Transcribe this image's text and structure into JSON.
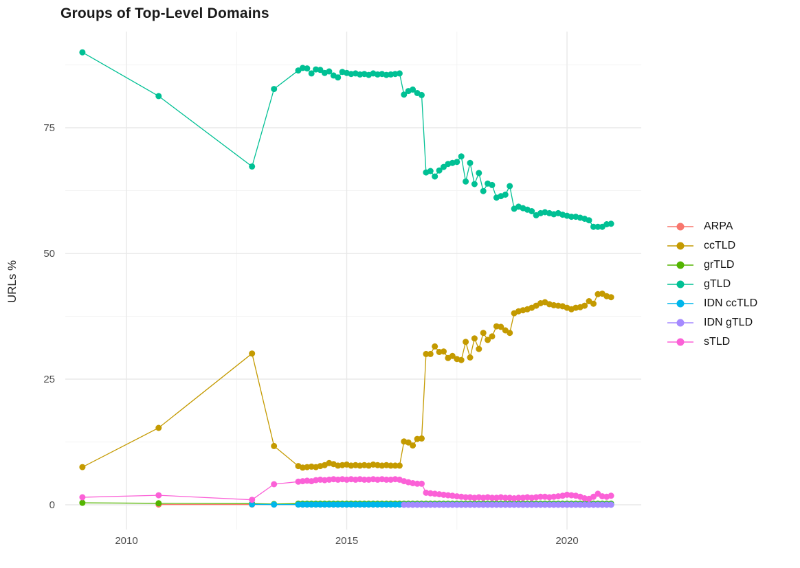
{
  "title": "Groups of Top-Level Domains",
  "ylabel": "URLs %",
  "chart_data": {
    "type": "line",
    "title": "Groups of Top-Level Domains",
    "xlabel": "",
    "ylabel": "URLs %",
    "legend_position": "right",
    "grid": "major+minor",
    "xticks": [
      "2010",
      "2015",
      "2020"
    ],
    "xtick_years": [
      2010,
      2015,
      2020
    ],
    "minor_xticks": [
      2012.5,
      2017.5
    ],
    "yticks": [
      "0",
      "25",
      "50",
      "75"
    ],
    "ytick_values": [
      0,
      25,
      50,
      75
    ],
    "minor_yticks": [
      12.5,
      37.5,
      62.5,
      87.5
    ],
    "xlim": [
      2008.6,
      2021.7
    ],
    "ylim": [
      -4.5,
      94.3
    ],
    "series": [
      {
        "name": "ARPA",
        "color": "#F8766D",
        "sparse": [
          [
            2010.73,
            0.05
          ],
          [
            2012.85,
            0.05
          ],
          [
            2013.35,
            0.05
          ]
        ],
        "dense_x0": 2013.9,
        "dense_dx": 0.1,
        "const_value": 0.05,
        "count": 72
      },
      {
        "name": "ccTLD",
        "color": "#C49A00",
        "sparse": [
          [
            2009.0,
            7.5
          ],
          [
            2010.73,
            15.3
          ],
          [
            2012.85,
            30.1
          ],
          [
            2013.35,
            11.7
          ]
        ],
        "dense_x0": 2013.9,
        "dense_dx": 0.1,
        "dense": [
          7.7,
          7.4,
          7.5,
          7.6,
          7.5,
          7.7,
          7.9,
          8.3,
          8.1,
          7.8,
          7.9,
          8.0,
          7.8,
          7.9,
          7.8,
          7.9,
          7.8,
          8.0,
          7.9,
          7.8,
          7.9,
          7.8,
          7.8,
          7.8,
          12.6,
          12.4,
          11.8,
          13.1,
          13.2,
          30.0,
          30.0,
          31.5,
          30.4,
          30.5,
          29.2,
          29.6,
          29.0,
          28.8,
          32.4,
          29.3,
          33.1,
          31.0,
          34.2,
          32.8,
          33.5,
          35.5,
          35.4,
          34.7,
          34.2,
          38.1,
          38.5,
          38.7,
          38.9,
          39.2,
          39.6,
          40.1,
          40.3,
          39.9,
          39.7,
          39.6,
          39.5,
          39.2,
          38.9,
          39.2,
          39.3,
          39.6,
          40.5,
          40.0,
          41.9,
          42.0,
          41.5,
          41.3
        ]
      },
      {
        "name": "grTLD",
        "color": "#53B400",
        "sparse": [
          [
            2009.0,
            0.4
          ],
          [
            2010.73,
            0.3
          ],
          [
            2012.85,
            0.25
          ],
          [
            2013.35,
            0.15
          ]
        ],
        "dense_x0": 2013.9,
        "dense_dx": 0.1,
        "const_value": 0.25,
        "count": 72
      },
      {
        "name": "gTLD",
        "color": "#00C094",
        "sparse": [
          [
            2009.0,
            90.0
          ],
          [
            2010.73,
            81.3
          ],
          [
            2012.85,
            67.3
          ],
          [
            2013.35,
            82.7
          ]
        ],
        "dense_x0": 2013.9,
        "dense_dx": 0.1,
        "dense": [
          86.4,
          86.9,
          86.8,
          85.8,
          86.6,
          86.5,
          85.9,
          86.2,
          85.4,
          85.0,
          86.1,
          85.9,
          85.7,
          85.8,
          85.6,
          85.7,
          85.5,
          85.8,
          85.6,
          85.7,
          85.5,
          85.6,
          85.7,
          85.8,
          81.6,
          82.3,
          82.6,
          81.9,
          81.5,
          66.1,
          66.4,
          65.3,
          66.5,
          67.2,
          67.8,
          68.0,
          68.2,
          69.3,
          64.3,
          68.0,
          63.8,
          66.0,
          62.4,
          63.9,
          63.6,
          61.1,
          61.4,
          61.7,
          63.4,
          58.9,
          59.3,
          59.0,
          58.7,
          58.4,
          57.6,
          58.0,
          58.2,
          58.0,
          57.8,
          58.0,
          57.7,
          57.5,
          57.3,
          57.3,
          57.1,
          56.9,
          56.6,
          55.3,
          55.3,
          55.3,
          55.8,
          55.9
        ]
      },
      {
        "name": "IDN ccTLD",
        "color": "#00B6EB",
        "sparse": [
          [
            2012.85,
            0.1
          ],
          [
            2013.35,
            0.05
          ]
        ],
        "dense_x0": 2013.9,
        "dense_dx": 0.1,
        "const_value": 0.05,
        "count": 72
      },
      {
        "name": "IDN gTLD",
        "color": "#A58AFF",
        "sparse": [],
        "dense_x0": 2016.3,
        "dense_dx": 0.1,
        "const_value": 0.0,
        "count": 48
      },
      {
        "name": "sTLD",
        "color": "#FB61D7",
        "sparse": [
          [
            2009.0,
            1.5
          ],
          [
            2010.73,
            1.9
          ],
          [
            2012.85,
            1.0
          ],
          [
            2013.35,
            4.1
          ]
        ],
        "dense_x0": 2013.9,
        "dense_dx": 0.1,
        "dense": [
          4.6,
          4.7,
          4.8,
          4.7,
          4.9,
          5.0,
          4.9,
          5.0,
          5.1,
          5.0,
          5.1,
          5.0,
          5.1,
          5.0,
          5.1,
          5.0,
          5.0,
          5.1,
          5.0,
          5.1,
          5.0,
          5.0,
          5.1,
          5.0,
          4.7,
          4.5,
          4.3,
          4.2,
          4.2,
          2.4,
          2.3,
          2.2,
          2.1,
          2.0,
          1.9,
          1.8,
          1.7,
          1.6,
          1.5,
          1.5,
          1.4,
          1.5,
          1.4,
          1.5,
          1.4,
          1.4,
          1.5,
          1.4,
          1.4,
          1.3,
          1.4,
          1.4,
          1.5,
          1.4,
          1.5,
          1.6,
          1.6,
          1.5,
          1.6,
          1.7,
          1.8,
          2.0,
          1.9,
          1.8,
          1.6,
          1.3,
          1.2,
          1.6,
          2.2,
          1.7,
          1.6,
          1.8
        ]
      }
    ]
  },
  "colors": {
    "grid_major": "#E8E8E8",
    "grid_minor": "#F3F3F3",
    "tick_label": "#4d4d4d",
    "title_text": "#1a1a1a"
  }
}
